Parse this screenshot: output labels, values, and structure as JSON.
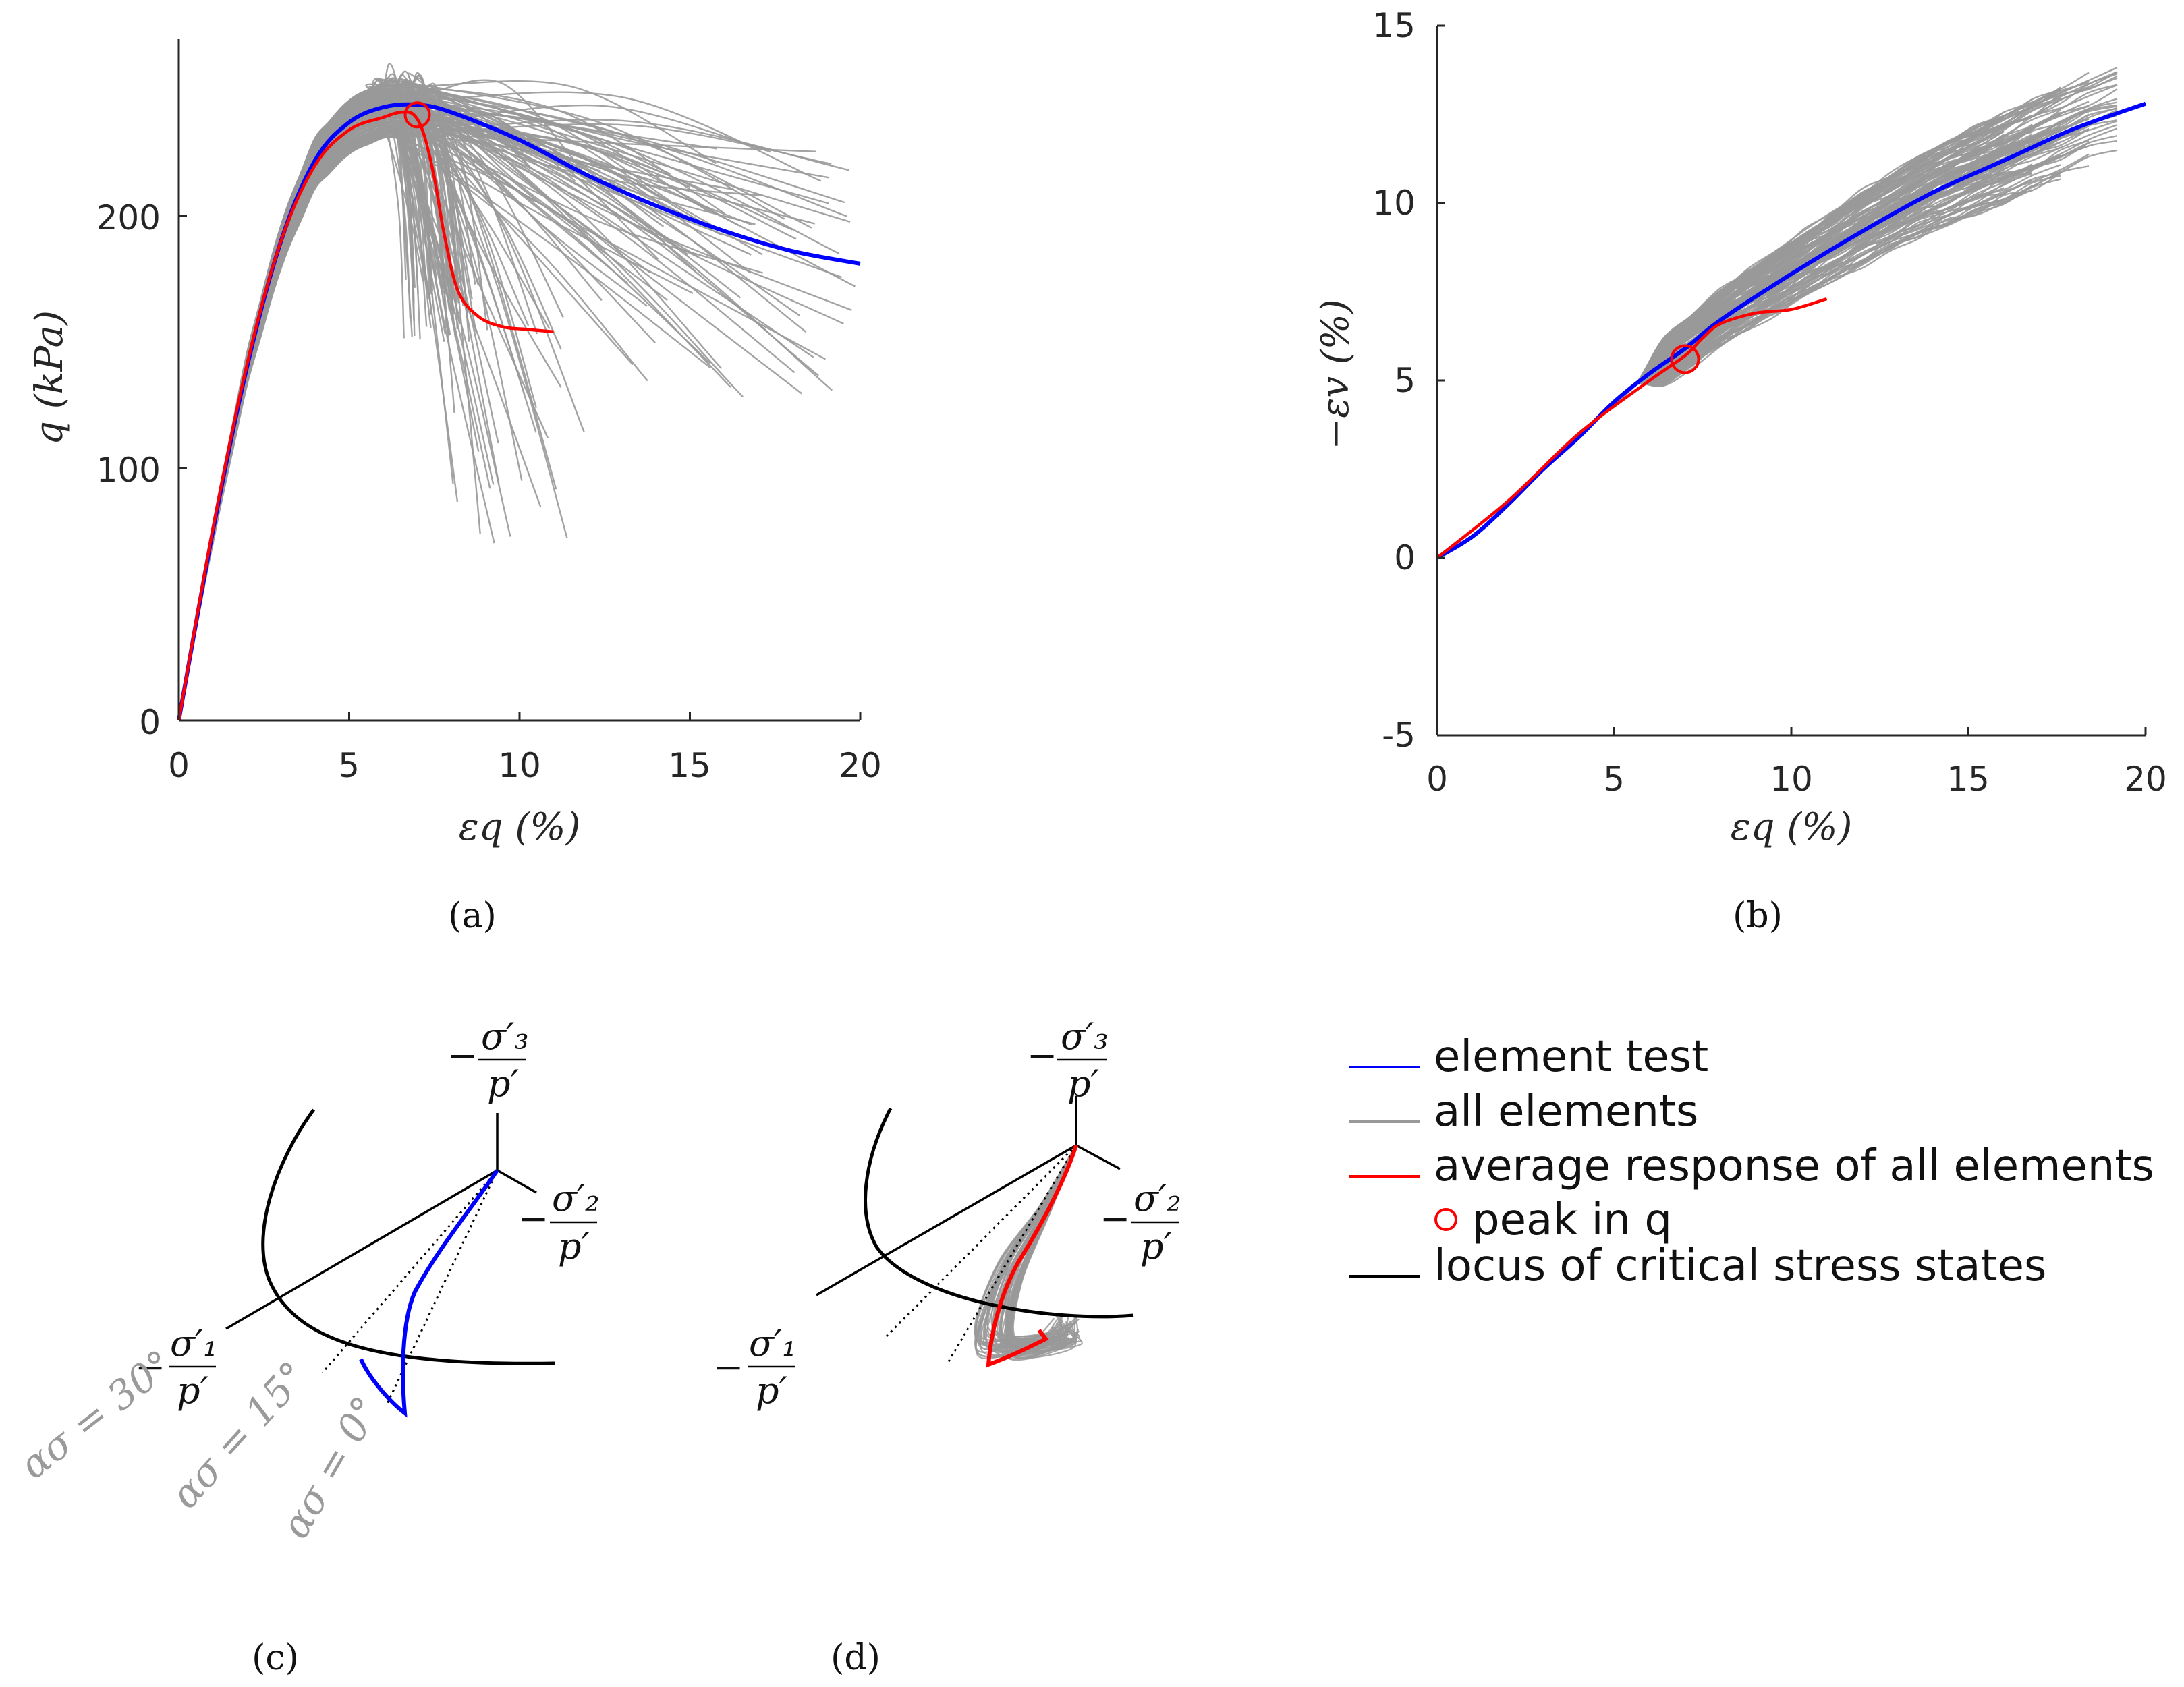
{
  "colors": {
    "element_test": "#0000ff",
    "all_elements": "#999999",
    "average": "#ff0000",
    "locus": "#000000",
    "axis": "#262626"
  },
  "chart_data": [
    {
      "id": "a",
      "type": "line",
      "caption": "(a)",
      "xlabel": "εq (%)",
      "ylabel": "q (kPa)",
      "xlim": [
        0,
        20
      ],
      "ylim": [
        0,
        270
      ],
      "xticks": [
        "0",
        "5",
        "10",
        "15",
        "20"
      ],
      "yticks": [
        "0",
        "100",
        "200"
      ],
      "series": [
        {
          "name": "element test",
          "x": [
            0,
            1,
            2,
            3,
            4,
            5,
            6,
            7,
            8,
            10,
            12,
            14,
            16,
            18,
            20
          ],
          "y": [
            0,
            75,
            140,
            190,
            222,
            237,
            243,
            244,
            241,
            230,
            216,
            204,
            194,
            186,
            181
          ]
        },
        {
          "name": "average response of all elements",
          "x": [
            0,
            1,
            2,
            3,
            4,
            5,
            6,
            6.5,
            6.9,
            7.2,
            7.5,
            7.8,
            8.2,
            8.8,
            9.5,
            10.2,
            11
          ],
          "y": [
            0,
            76,
            141,
            190,
            220,
            234,
            239,
            241,
            240,
            232,
            215,
            192,
            170,
            160,
            156,
            155,
            154
          ]
        }
      ],
      "peak": {
        "x": 7,
        "y": 240
      }
    },
    {
      "id": "b",
      "type": "line",
      "caption": "(b)",
      "xlabel": "εq (%)",
      "ylabel": "−εv (%)",
      "xlim": [
        0,
        20
      ],
      "ylim": [
        -5,
        15
      ],
      "xticks": [
        "0",
        "5",
        "10",
        "15",
        "20"
      ],
      "yticks": [
        "-5",
        "0",
        "5",
        "10",
        "15"
      ],
      "series": [
        {
          "name": "element test",
          "x": [
            0,
            1,
            2,
            3,
            4,
            5,
            6,
            7,
            8,
            10,
            12,
            14,
            16,
            18,
            20
          ],
          "y": [
            0,
            0.6,
            1.5,
            2.5,
            3.4,
            4.4,
            5.2,
            5.9,
            6.7,
            8.0,
            9.2,
            10.3,
            11.2,
            12.1,
            12.8
          ]
        },
        {
          "name": "average response of all elements",
          "x": [
            0,
            2,
            4,
            6,
            7,
            7.5,
            8,
            9,
            10,
            11
          ],
          "y": [
            0,
            1.6,
            3.5,
            5.0,
            5.7,
            6.2,
            6.6,
            6.9,
            7.0,
            7.3
          ]
        }
      ],
      "peak": {
        "x": 7,
        "y": 5.6
      }
    },
    {
      "id": "c",
      "type": "line",
      "caption": "(c)",
      "axes_labels": {
        "sigma1": "σ′₁",
        "sigma2": "σ′₂",
        "sigma3": "σ′₃",
        "p": "p′",
        "minus": "−"
      },
      "angle_labels": [
        "ασ = 30°",
        "ασ = 15°",
        "ασ = 0°"
      ]
    },
    {
      "id": "d",
      "type": "line",
      "caption": "(d)",
      "axes_labels": {
        "sigma1": "σ′₁",
        "sigma2": "σ′₂",
        "sigma3": "σ′₃",
        "p": "p′",
        "minus": "−"
      }
    }
  ],
  "legend": {
    "items": [
      {
        "label": "element test",
        "marker": "line",
        "color": "#0000ff"
      },
      {
        "label": "all elements",
        "marker": "line",
        "color": "#999999"
      },
      {
        "label": "average response of all elements",
        "marker": "line",
        "color": "#ff0000"
      },
      {
        "label": "peak in q",
        "marker": "circle",
        "color": "#ff0000"
      },
      {
        "label": "locus of critical stress states",
        "marker": "line",
        "color": "#000000"
      }
    ]
  }
}
